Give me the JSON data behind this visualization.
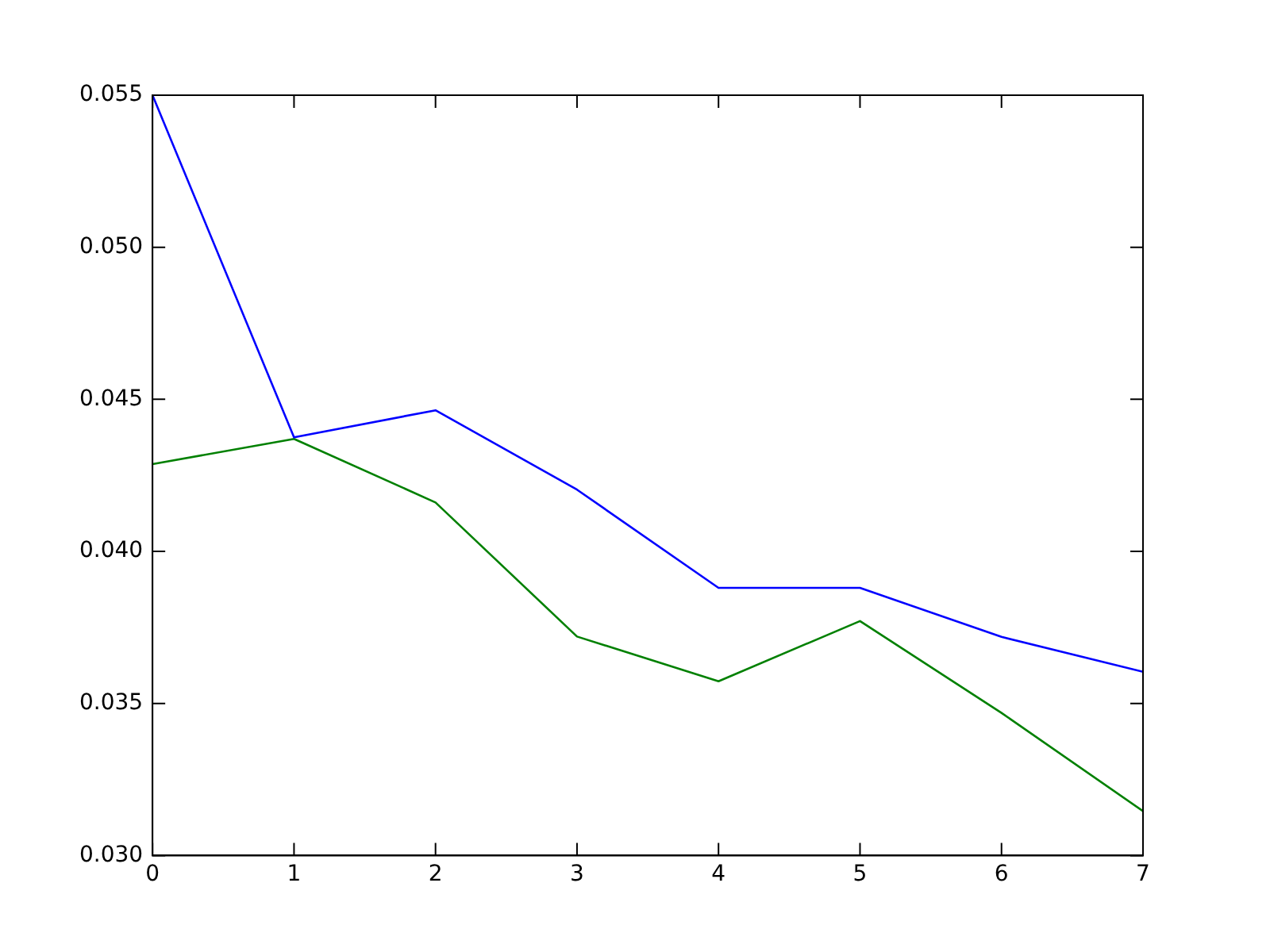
{
  "chart_data": {
    "type": "line",
    "x": [
      0,
      1,
      2,
      3,
      4,
      5,
      6,
      7
    ],
    "series": [
      {
        "color": "#0000ff",
        "values": [
          0.055,
          0.04375,
          0.04464,
          0.04203,
          0.0388,
          0.0388,
          0.03719,
          0.03604
        ]
      },
      {
        "color": "#008000",
        "values": [
          0.04287,
          0.0437,
          0.04161,
          0.0372,
          0.03573,
          0.03771,
          0.03469,
          0.03146
        ]
      }
    ],
    "xlim": [
      0,
      7
    ],
    "xticks": [
      0,
      1,
      2,
      3,
      4,
      5,
      6,
      7
    ],
    "ylim": [
      0.03,
      0.055
    ],
    "yticks": [
      {
        "value": 0.03,
        "label": "0.030"
      },
      0.035,
      {
        "value": 0.04,
        "label": "0.040"
      },
      0.045,
      {
        "value": 0.05,
        "label": "0.050"
      },
      0.055
    ],
    "grid": false,
    "legend": false,
    "marker": "none",
    "line_style": "solid"
  }
}
